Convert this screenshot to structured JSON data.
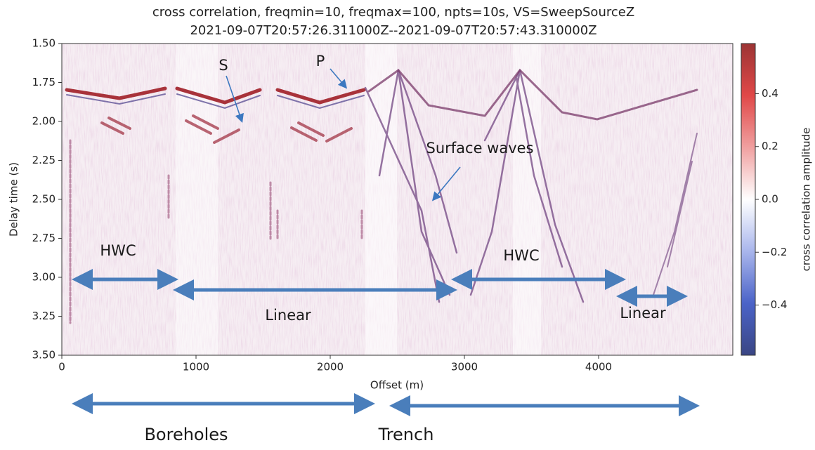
{
  "chart_data": {
    "type": "image",
    "title": "cross correlation, freqmin=10, freqmax=100, npts=10s, VS=SweepSourceZ",
    "subtitle": "2021-09-07T20:57:26.311000Z--2021-09-07T20:57:43.310000Z",
    "x_label": "Offset (m)",
    "y_label": "Delay time (s)",
    "xlim": [
      0,
      5000
    ],
    "xticks": [
      0,
      1000,
      2000,
      3000,
      4000
    ],
    "ylim": [
      3.5,
      1.5
    ],
    "yticks": [
      {
        "value": 1.5,
        "label": "1.50"
      },
      1.75,
      {
        "value": 2.0,
        "label": "2.00"
      },
      2.25,
      {
        "value": 2.5,
        "label": "2.50"
      },
      2.75,
      {
        "value": 3.0,
        "label": "3.00"
      },
      3.25,
      {
        "value": 3.5,
        "label": "3.50"
      }
    ],
    "colorbar": {
      "label": "cross correlation amplitude",
      "clim": [
        -0.59,
        0.59
      ],
      "ticks": [
        {
          "value": -0.4,
          "label": "−0.4"
        },
        {
          "value": -0.2,
          "label": "−0.2"
        },
        {
          "value": 0,
          "label": "0.0"
        },
        0.2,
        0.4
      ],
      "colormap": [
        "#3a4684",
        "#4b63c8",
        "#a9b6ec",
        "#ffffff",
        "#f0a0a0",
        "#e04848",
        "#9c3434"
      ]
    },
    "annotations": [
      "S",
      "P",
      "Surface waves",
      "HWC",
      "Linear",
      "HWC",
      "Linear",
      "Boreholes",
      "Trench"
    ]
  }
}
